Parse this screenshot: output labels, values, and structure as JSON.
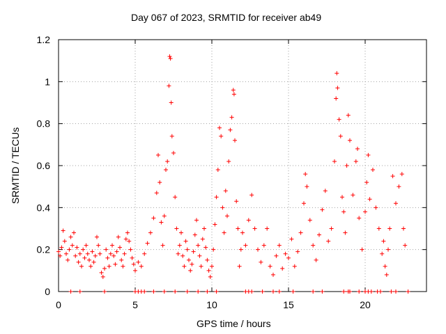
{
  "chart_data": {
    "type": "scatter",
    "title": "Day 067 of 2023, SRMTID for receiver ab49",
    "xlabel": "GPS time / hours",
    "ylabel": "SRMTID / TECUs",
    "xlim": [
      0,
      24
    ],
    "ylim": [
      0,
      1.2
    ],
    "xticks": [
      "0",
      "5",
      "10",
      "15",
      "20"
    ],
    "yticks": [
      "0",
      "0.2",
      "0.4",
      "0.6",
      "0.8",
      "1",
      "1.2"
    ],
    "grid": true,
    "marker": "+",
    "color": "#ff0000",
    "series": [
      {
        "name": "SRMTID",
        "points": [
          [
            0.0,
            0.19
          ],
          [
            0.1,
            0.17
          ],
          [
            0.2,
            0.21
          ],
          [
            0.3,
            0.29
          ],
          [
            0.4,
            0.24
          ],
          [
            0.5,
            0.18
          ],
          [
            0.6,
            0.15
          ],
          [
            0.7,
            0.2
          ],
          [
            0.8,
            0.26
          ],
          [
            0.9,
            0.22
          ],
          [
            1.0,
            0.28
          ],
          [
            1.1,
            0.17
          ],
          [
            1.2,
            0.21
          ],
          [
            1.3,
            0.14
          ],
          [
            1.4,
            0.18
          ],
          [
            1.5,
            0.12
          ],
          [
            1.6,
            0.2
          ],
          [
            1.7,
            0.16
          ],
          [
            1.8,
            0.22
          ],
          [
            1.9,
            0.18
          ],
          [
            2.0,
            0.15
          ],
          [
            2.1,
            0.12
          ],
          [
            2.2,
            0.19
          ],
          [
            2.3,
            0.14
          ],
          [
            2.4,
            0.17
          ],
          [
            2.5,
            0.26
          ],
          [
            2.6,
            0.22
          ],
          [
            2.7,
            0.18
          ],
          [
            2.8,
            0.09
          ],
          [
            2.9,
            0.07
          ],
          [
            3.0,
            0.11
          ],
          [
            3.1,
            0.2
          ],
          [
            3.2,
            0.16
          ],
          [
            3.3,
            0.12
          ],
          [
            3.4,
            0.18
          ],
          [
            3.5,
            0.22
          ],
          [
            3.6,
            0.17
          ],
          [
            3.7,
            0.13
          ],
          [
            3.8,
            0.19
          ],
          [
            3.9,
            0.26
          ],
          [
            4.0,
            0.21
          ],
          [
            4.1,
            0.15
          ],
          [
            4.2,
            0.12
          ],
          [
            4.3,
            0.18
          ],
          [
            4.4,
            0.25
          ],
          [
            4.5,
            0.28
          ],
          [
            4.6,
            0.24
          ],
          [
            4.7,
            0.2
          ],
          [
            4.8,
            0.16
          ],
          [
            4.9,
            0.13
          ],
          [
            5.0,
            0.1
          ],
          [
            5.2,
            0.14
          ],
          [
            5.4,
            0.12
          ],
          [
            5.6,
            0.18
          ],
          [
            5.8,
            0.23
          ],
          [
            6.0,
            0.28
          ],
          [
            6.2,
            0.35
          ],
          [
            6.4,
            0.47
          ],
          [
            6.5,
            0.65
          ],
          [
            6.6,
            0.52
          ],
          [
            6.7,
            0.33
          ],
          [
            6.8,
            0.22
          ],
          [
            6.9,
            0.36
          ],
          [
            7.0,
            0.58
          ],
          [
            7.1,
            0.62
          ],
          [
            7.2,
            0.98
          ],
          [
            7.25,
            1.12
          ],
          [
            7.3,
            1.11
          ],
          [
            7.35,
            0.9
          ],
          [
            7.4,
            0.74
          ],
          [
            7.5,
            0.66
          ],
          [
            7.6,
            0.45
          ],
          [
            7.7,
            0.3
          ],
          [
            7.8,
            0.18
          ],
          [
            7.9,
            0.22
          ],
          [
            8.0,
            0.28
          ],
          [
            8.1,
            0.17
          ],
          [
            8.2,
            0.12
          ],
          [
            8.3,
            0.24
          ],
          [
            8.4,
            0.2
          ],
          [
            8.5,
            0.15
          ],
          [
            8.6,
            0.1
          ],
          [
            8.7,
            0.13
          ],
          [
            8.8,
            0.19
          ],
          [
            8.9,
            0.27
          ],
          [
            9.0,
            0.34
          ],
          [
            9.1,
            0.22
          ],
          [
            9.2,
            0.17
          ],
          [
            9.3,
            0.12
          ],
          [
            9.4,
            0.25
          ],
          [
            9.5,
            0.3
          ],
          [
            9.6,
            0.21
          ],
          [
            9.7,
            0.15
          ],
          [
            9.8,
            0.1
          ],
          [
            9.9,
            0.07
          ],
          [
            10.0,
            0.12
          ],
          [
            10.1,
            0.2
          ],
          [
            10.2,
            0.32
          ],
          [
            10.3,
            0.45
          ],
          [
            10.4,
            0.58
          ],
          [
            10.5,
            0.78
          ],
          [
            10.6,
            0.74
          ],
          [
            10.7,
            0.4
          ],
          [
            10.8,
            0.28
          ],
          [
            10.9,
            0.48
          ],
          [
            11.0,
            0.36
          ],
          [
            11.1,
            0.62
          ],
          [
            11.2,
            0.77
          ],
          [
            11.3,
            0.83
          ],
          [
            11.4,
            0.96
          ],
          [
            11.45,
            0.94
          ],
          [
            11.5,
            0.72
          ],
          [
            11.6,
            0.43
          ],
          [
            11.7,
            0.3
          ],
          [
            11.8,
            0.12
          ],
          [
            11.9,
            0.2
          ],
          [
            12.0,
            0.28
          ],
          [
            12.2,
            0.22
          ],
          [
            12.4,
            0.34
          ],
          [
            12.6,
            0.46
          ],
          [
            12.8,
            0.3
          ],
          [
            13.0,
            0.2
          ],
          [
            13.2,
            0.14
          ],
          [
            13.4,
            0.22
          ],
          [
            13.6,
            0.3
          ],
          [
            13.8,
            0.12
          ],
          [
            14.0,
            0.08
          ],
          [
            14.2,
            0.17
          ],
          [
            14.4,
            0.22
          ],
          [
            14.6,
            0.11
          ],
          [
            14.8,
            0.18
          ],
          [
            15.0,
            0.16
          ],
          [
            15.2,
            0.25
          ],
          [
            15.4,
            0.12
          ],
          [
            15.6,
            0.19
          ],
          [
            15.8,
            0.28
          ],
          [
            16.0,
            0.42
          ],
          [
            16.1,
            0.56
          ],
          [
            16.2,
            0.5
          ],
          [
            16.4,
            0.34
          ],
          [
            16.6,
            0.22
          ],
          [
            16.8,
            0.15
          ],
          [
            17.0,
            0.27
          ],
          [
            17.2,
            0.39
          ],
          [
            17.4,
            0.48
          ],
          [
            17.6,
            0.24
          ],
          [
            17.8,
            0.3
          ],
          [
            18.0,
            0.62
          ],
          [
            18.1,
            0.92
          ],
          [
            18.15,
            1.04
          ],
          [
            18.2,
            0.97
          ],
          [
            18.3,
            0.82
          ],
          [
            18.4,
            0.74
          ],
          [
            18.5,
            0.45
          ],
          [
            18.6,
            0.38
          ],
          [
            18.7,
            0.28
          ],
          [
            18.8,
            0.6
          ],
          [
            18.9,
            0.84
          ],
          [
            19.0,
            0.72
          ],
          [
            19.2,
            0.46
          ],
          [
            19.4,
            0.62
          ],
          [
            19.5,
            0.68
          ],
          [
            19.6,
            0.35
          ],
          [
            19.8,
            0.2
          ],
          [
            20.0,
            0.38
          ],
          [
            20.1,
            0.52
          ],
          [
            20.2,
            0.65
          ],
          [
            20.3,
            0.44
          ],
          [
            20.5,
            0.58
          ],
          [
            20.7,
            0.4
          ],
          [
            20.9,
            0.3
          ],
          [
            21.1,
            0.18
          ],
          [
            21.2,
            0.24
          ],
          [
            21.3,
            0.12
          ],
          [
            21.4,
            0.08
          ],
          [
            21.5,
            0.2
          ],
          [
            21.6,
            0.3
          ],
          [
            21.8,
            0.55
          ],
          [
            22.0,
            0.42
          ],
          [
            22.2,
            0.5
          ],
          [
            22.4,
            0.56
          ],
          [
            22.5,
            0.3
          ],
          [
            22.6,
            0.22
          ]
        ]
      }
    ],
    "zero_points_x": [
      0.8,
      1.4,
      3.0,
      5.0,
      5.2,
      5.4,
      5.6,
      6.2,
      6.9,
      7.6,
      8.4,
      9.1,
      9.7,
      10.3,
      12.2,
      12.4,
      12.6,
      13.3,
      14.0,
      14.4,
      15.3,
      16.6,
      17.2,
      18.6,
      18.9,
      19.0,
      19.6,
      20.0,
      20.2,
      20.4,
      20.8,
      21.0,
      21.7,
      22.0,
      22.8
    ]
  }
}
